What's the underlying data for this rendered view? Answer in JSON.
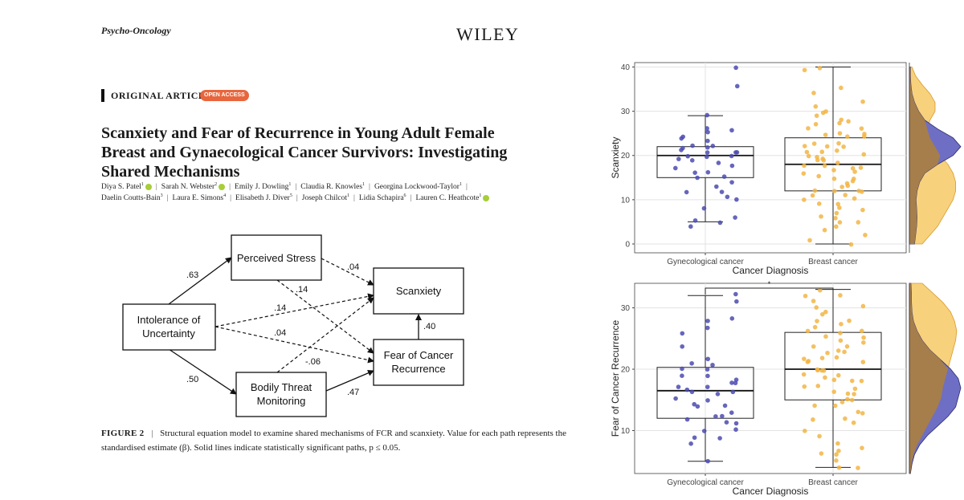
{
  "paper": {
    "journal": "Psycho-Oncology",
    "publisher": "WILEY",
    "article_type": "ORIGINAL ARTICLE",
    "open_access": "OPEN ACCESS",
    "title_lines": [
      "Scanxiety and Fear of Recurrence in Young Adult Female",
      "Breast and Gynaecological Cancer Survivors: Investigating",
      "Shared Mechanisms"
    ],
    "authors_line1": [
      {
        "name": "Diya S. Patel",
        "sup": "1",
        "orcid": true
      },
      {
        "name": "Sarah N. Webster",
        "sup": "2",
        "orcid": true
      },
      {
        "name": "Emily J. Dowling",
        "sup": "1",
        "orcid": false
      },
      {
        "name": "Claudia R. Knowles",
        "sup": "1",
        "orcid": false
      },
      {
        "name": "Georgina Lockwood-Taylor",
        "sup": "1",
        "orcid": false
      }
    ],
    "authors_line2": [
      {
        "name": "Daelin Coutts-Bain",
        "sup": "3",
        "orcid": false
      },
      {
        "name": "Laura E. Simons",
        "sup": "4",
        "orcid": false
      },
      {
        "name": "Elisabeth J. Diver",
        "sup": "5",
        "orcid": false
      },
      {
        "name": "Joseph Chilcot",
        "sup": "1",
        "orcid": false
      },
      {
        "name": "Lidia Schapira",
        "sup": "6",
        "orcid": false
      },
      {
        "name": "Lauren C. Heathcote",
        "sup": "1",
        "orcid": true
      }
    ],
    "figure_label": "FIGURE 2",
    "caption_text": "Structural equation model to examine shared mechanisms of FCR and scanxiety. Value for each path represents the standardised estimate (β). Solid lines indicate statistically significant paths, p ≤ 0.05."
  },
  "sem_diagram": {
    "nodes": {
      "iu": [
        "Intolerance of",
        "Uncertainty"
      ],
      "ps": [
        "Perceived Stress"
      ],
      "btm": [
        "Bodily Threat",
        "Monitoring"
      ],
      "scx": [
        "Scanxiety"
      ],
      "fcr": [
        "Fear of Cancer",
        "Recurrence"
      ]
    },
    "paths": [
      {
        "from": "iu",
        "to": "ps",
        "estimate": ".63",
        "significant": true
      },
      {
        "from": "iu",
        "to": "btm",
        "estimate": ".50",
        "significant": true
      },
      {
        "from": "iu",
        "to": "scx",
        "estimate": ".14",
        "significant": false
      },
      {
        "from": "iu",
        "to": "fcr",
        "estimate": ".04",
        "significant": false
      },
      {
        "from": "ps",
        "to": "scx",
        "estimate": ".04",
        "significant": false
      },
      {
        "from": "ps",
        "to": "fcr",
        "estimate": ".14",
        "significant": false
      },
      {
        "from": "btm",
        "to": "scx",
        "estimate": "-.06",
        "significant": false
      },
      {
        "from": "btm",
        "to": "fcr",
        "estimate": ".47",
        "significant": true
      },
      {
        "from": "fcr",
        "to": "scx",
        "estimate": ".40",
        "significant": true
      }
    ]
  },
  "colors": {
    "gyn": "#4b4bb0",
    "breast": "#f2b544",
    "gyn_density": "#6e6ec4",
    "breast_density": "#f7d17c",
    "overlap_density": "#a57e4c",
    "oa_badge": "#e8663d",
    "orcid": "#a6ce39"
  },
  "chart_data": [
    {
      "type": "box",
      "title": "",
      "xlabel": "Cancer Diagnosis",
      "ylabel": "Scanxiety",
      "categories": [
        "Gynecological cancer",
        "Breast cancer"
      ],
      "ylim": [
        -2,
        41
      ],
      "yticks": [
        0,
        10,
        20,
        30,
        40
      ],
      "boxes": [
        {
          "group": "Gynecological cancer",
          "min": 5,
          "q1": 15,
          "median": 20,
          "q3": 22,
          "max": 29
        },
        {
          "group": "Breast cancer",
          "min": 0,
          "q1": 12,
          "median": 18,
          "q3": 24,
          "max": 40
        }
      ],
      "points": {
        "Gynecological cancer": [
          40,
          36,
          26,
          26,
          25,
          24,
          24,
          23,
          22,
          22,
          22,
          22,
          21,
          21,
          21,
          21,
          20,
          20,
          20,
          19,
          19,
          18,
          18,
          17,
          16,
          16,
          15,
          15,
          14,
          13,
          12,
          12,
          11,
          10,
          8,
          6,
          5,
          5,
          4,
          29
        ],
        "Breast cancer": [
          40,
          39,
          35,
          34,
          32,
          31,
          30,
          30,
          29,
          28,
          28,
          27,
          27,
          26,
          26,
          25,
          25,
          25,
          24,
          24,
          23,
          23,
          22,
          22,
          22,
          21,
          21,
          21,
          20,
          20,
          20,
          19,
          19,
          19,
          18,
          18,
          18,
          17,
          17,
          17,
          16,
          16,
          15,
          15,
          15,
          14,
          14,
          13,
          13,
          12,
          12,
          12,
          12,
          11,
          11,
          10,
          10,
          9,
          9,
          8,
          8,
          7,
          6,
          6,
          5,
          5,
          4,
          3,
          2,
          1,
          0
        ]
      },
      "density_scale": [
        0,
        40
      ],
      "density": {
        "Gynecological cancer": [
          0.1,
          0.12,
          0.14,
          0.15,
          0.14,
          0.13,
          0.15,
          0.2,
          0.3,
          0.55,
          0.85,
          1.0,
          0.85,
          0.55,
          0.3,
          0.18,
          0.1,
          0.05,
          0.03,
          0.02,
          0.02
        ],
        "Breast cancer": [
          0.25,
          0.4,
          0.55,
          0.65,
          0.75,
          0.85,
          0.9,
          0.9,
          0.85,
          0.75,
          0.6,
          0.5,
          0.4,
          0.35,
          0.4,
          0.5,
          0.5,
          0.4,
          0.25,
          0.12,
          0.05
        ]
      },
      "grid": true,
      "significance": ""
    },
    {
      "type": "box",
      "title": "",
      "xlabel": "Cancer Diagnosis",
      "ylabel": "Fear of Cancer Recurrence",
      "categories": [
        "Gynecological cancer",
        "Breast cancer"
      ],
      "ylim": [
        3,
        34
      ],
      "yticks": [
        10,
        20,
        30
      ],
      "boxes": [
        {
          "group": "Gynecological cancer",
          "min": 5,
          "q1": 12,
          "median": 16.5,
          "q3": 20.3,
          "max": 32
        },
        {
          "group": "Breast cancer",
          "min": 4,
          "q1": 15,
          "median": 20,
          "q3": 26,
          "max": 33
        }
      ],
      "points": {
        "Gynecological cancer": [
          32,
          31,
          28,
          28,
          27,
          26,
          24,
          22,
          21,
          21,
          20,
          20,
          19,
          19,
          18,
          18,
          18,
          17,
          17,
          17,
          16,
          16,
          16,
          15,
          15,
          14,
          14,
          14,
          13,
          12,
          12,
          12,
          11,
          11,
          10,
          10,
          9,
          9,
          8,
          5
        ],
        "Breast cancer": [
          33,
          32,
          32,
          31,
          30,
          30,
          29,
          29,
          28,
          28,
          27,
          27,
          26,
          26,
          26,
          25,
          25,
          25,
          24,
          24,
          24,
          23,
          23,
          23,
          22,
          22,
          22,
          21,
          21,
          21,
          20,
          20,
          20,
          20,
          19,
          19,
          19,
          18,
          18,
          18,
          17,
          17,
          17,
          16,
          16,
          16,
          15,
          15,
          15,
          14,
          14,
          13,
          13,
          12,
          12,
          11,
          10,
          9,
          8,
          7,
          7,
          6,
          6,
          5,
          4,
          4
        ]
      },
      "density_scale": [
        3,
        34
      ],
      "density": {
        "Gynecological cancer": [
          0.02,
          0.05,
          0.1,
          0.2,
          0.35,
          0.55,
          0.75,
          0.9,
          0.95,
          1.0,
          0.95,
          0.8,
          0.6,
          0.4,
          0.25,
          0.15,
          0.08,
          0.05,
          0.04,
          0.04,
          0.03
        ],
        "Breast cancer": [
          0.02,
          0.04,
          0.08,
          0.15,
          0.25,
          0.35,
          0.45,
          0.55,
          0.62,
          0.65,
          0.7,
          0.75,
          0.8,
          0.85,
          0.9,
          0.92,
          0.88,
          0.8,
          0.65,
          0.45,
          0.25
        ]
      },
      "grid": true,
      "significance": "*"
    }
  ]
}
